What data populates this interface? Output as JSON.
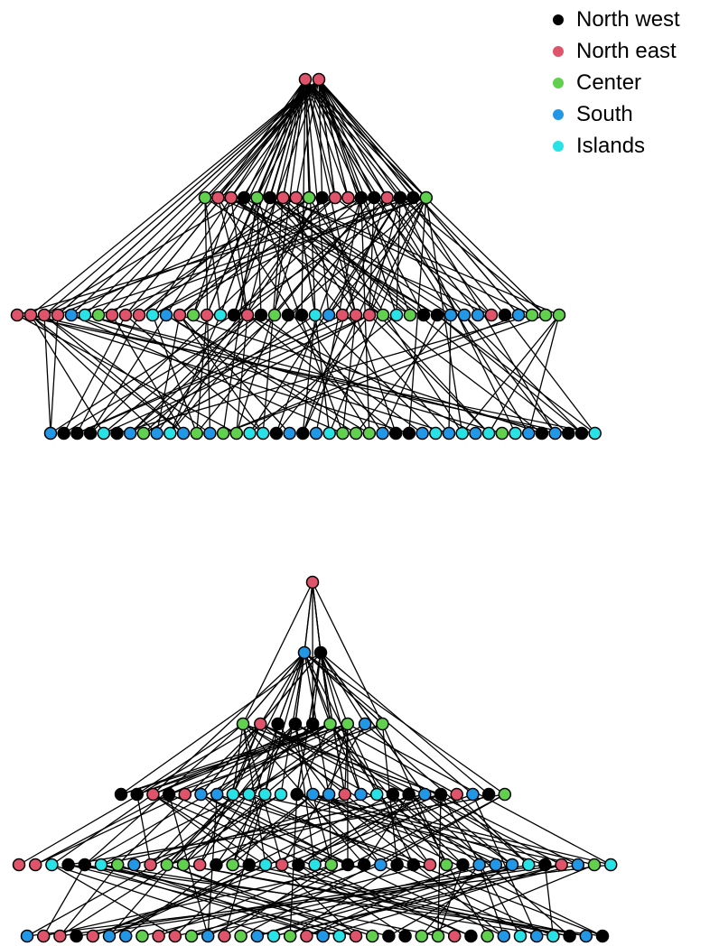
{
  "legend": [
    {
      "label": "North west",
      "color": "#000000"
    },
    {
      "label": "North east",
      "color": "#DF536B"
    },
    {
      "label": "Center",
      "color": "#61D04F"
    },
    {
      "label": "South",
      "color": "#2297E6"
    },
    {
      "label": "Islands",
      "color": "#28E2E5"
    }
  ],
  "network_top": {
    "levels": [
      {
        "colors": [
          1,
          1
        ]
      },
      {
        "colors": [
          2,
          1,
          1,
          0,
          2,
          0,
          1,
          1,
          2,
          0,
          1,
          1,
          0,
          0,
          1,
          0,
          0,
          2
        ]
      },
      {
        "colors": [
          1,
          1,
          1,
          1,
          3,
          4,
          2,
          1,
          1,
          1,
          4,
          3,
          1,
          2,
          1,
          4,
          0,
          1,
          0,
          2,
          0,
          0,
          4,
          3,
          1,
          1,
          1,
          2,
          4,
          2,
          0,
          0,
          3,
          3,
          3,
          1,
          0,
          3,
          2,
          2,
          2
        ]
      },
      {
        "colors": [
          3,
          0,
          0,
          0,
          4,
          0,
          3,
          2,
          3,
          4,
          3,
          2,
          3,
          2,
          2,
          4,
          4,
          0,
          3,
          0,
          3,
          4,
          2,
          2,
          2,
          3,
          0,
          0,
          3,
          4,
          3,
          4,
          3,
          4,
          2,
          4,
          3,
          0,
          3,
          0,
          0,
          4
        ]
      }
    ]
  },
  "network_bottom": {
    "levels": [
      {
        "colors": [
          1
        ]
      },
      {
        "colors": [
          3,
          0
        ]
      },
      {
        "colors": [
          2,
          1,
          0,
          0,
          0,
          2,
          2,
          3,
          2
        ]
      },
      {
        "colors": [
          0,
          0,
          1,
          0,
          1,
          3,
          3,
          4,
          4,
          4,
          4,
          0,
          3,
          3,
          1,
          3,
          4,
          0,
          0,
          3,
          0,
          1,
          3,
          0,
          2
        ]
      },
      {
        "colors": [
          1,
          1,
          4,
          0,
          0,
          4,
          2,
          3,
          1,
          2,
          2,
          1,
          0,
          2,
          0,
          4,
          1,
          0,
          4,
          2,
          0,
          0,
          3,
          0,
          0,
          1,
          2,
          0,
          3,
          3,
          3,
          4,
          0,
          1,
          3,
          2,
          4
        ]
      },
      {
        "colors": [
          3,
          1,
          1,
          0,
          1,
          3,
          3,
          2,
          1,
          1,
          2,
          3,
          1,
          2,
          3,
          4,
          2,
          1,
          3,
          4,
          1,
          2,
          0,
          0,
          2,
          2,
          1,
          0,
          2,
          3,
          4,
          3,
          4,
          0,
          3,
          0
        ]
      }
    ]
  }
}
